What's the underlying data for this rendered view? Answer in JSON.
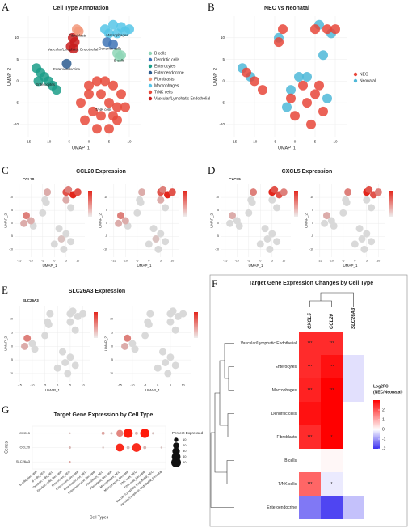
{
  "chart_data": [
    {
      "type": "scatter",
      "panel": "A",
      "title": "Cell Type Annotation",
      "xlabel": "UMAP_1",
      "ylabel": "UMAP_2",
      "xlim": [
        -17,
        13
      ],
      "ylim": [
        -13,
        15
      ],
      "xticks": [
        -15,
        -10,
        -5,
        0,
        5,
        10
      ],
      "yticks": [
        -10,
        -5,
        0,
        5,
        10
      ],
      "grid": true,
      "on_plot_labels": true,
      "series": [
        {
          "name": "B cells",
          "color": "#8ed6b6",
          "x": [
            7,
            7.5,
            8
          ],
          "y": [
            6.5,
            5.5,
            6
          ]
        },
        {
          "name": "Dendritic cells",
          "color": "#3e74b6",
          "x": [
            4.5,
            6
          ],
          "y": [
            9,
            8.5
          ]
        },
        {
          "name": "Enterocytes",
          "color": "#1b9e88",
          "x": [
            -13,
            -12,
            -11,
            -10,
            -9,
            -8,
            -12.5
          ],
          "y": [
            3,
            2,
            1,
            0,
            -1,
            -2,
            0
          ]
        },
        {
          "name": "Enteroendocrine",
          "color": "#2d5c8f",
          "x": [
            -5.5
          ],
          "y": [
            4
          ]
        },
        {
          "name": "Fibroblasts",
          "color": "#f2987a",
          "x": [
            -3,
            -2.5
          ],
          "y": [
            12,
            11.5
          ]
        },
        {
          "name": "Macrophages",
          "color": "#56c5e8",
          "x": [
            4,
            6,
            8,
            10,
            7,
            9,
            5
          ],
          "y": [
            12,
            13,
            12.5,
            12,
            11,
            11.5,
            11
          ]
        },
        {
          "name": "T/NK cells",
          "color": "#e84a3b",
          "x": [
            0,
            2,
            4,
            6,
            8,
            9,
            7,
            5,
            2,
            -1,
            -2,
            0,
            3,
            5,
            7,
            3,
            1,
            6
          ],
          "y": [
            -1,
            0,
            0,
            -1,
            -3,
            -6,
            -9,
            -11,
            -11,
            -9,
            -5,
            -3,
            -3,
            -5,
            -6,
            -8,
            -7,
            -8
          ]
        },
        {
          "name": "Vascular/Lymphatic Endothelial",
          "color": "#c81e1e",
          "x": [
            -4,
            -3.5,
            -4.5,
            -3.8
          ],
          "y": [
            10,
            9,
            8,
            7.5
          ]
        }
      ]
    },
    {
      "type": "scatter",
      "panel": "B",
      "title": "NEC vs Neonatal",
      "xlabel": "UMAP_1",
      "ylabel": "UMAP_2",
      "xlim": [
        -17,
        13
      ],
      "ylim": [
        -13,
        15
      ],
      "xticks": [
        -15,
        -10,
        -5,
        0,
        5,
        10
      ],
      "yticks": [
        -10,
        -5,
        0,
        5,
        10
      ],
      "grid": true,
      "on_plot_labels": false,
      "series": [
        {
          "name": "NEC",
          "color": "#e8463a",
          "x": [
            5,
            8,
            10,
            -3,
            -4,
            -12,
            -10,
            -8,
            2,
            5,
            7,
            4,
            0,
            3,
            -1,
            6
          ],
          "y": [
            12,
            12,
            12,
            12,
            9,
            2,
            0,
            -2,
            -1,
            -3,
            -7,
            -10,
            -8,
            -5,
            -4,
            -1
          ]
        },
        {
          "name": "Neonatal",
          "color": "#4fb8d8",
          "x": [
            6,
            9,
            7,
            -4,
            -13,
            -11,
            -1,
            1,
            3,
            8,
            -2
          ],
          "y": [
            13,
            11,
            6,
            10,
            3,
            1,
            -2,
            1,
            1,
            -4,
            -6
          ]
        }
      ]
    },
    {
      "type": "feature",
      "panel": "C",
      "title": "CCL20 Expression",
      "gene": "CCL20",
      "xlabel": "UMAP_1",
      "ylabel": "UMAP_2",
      "xlim": [
        -17,
        13
      ],
      "ylim": [
        -13,
        15
      ],
      "xticks": [
        -15,
        -10,
        -5,
        0,
        5,
        10
      ],
      "yticks": [
        -10,
        -5,
        0,
        5,
        10
      ],
      "clim": [
        0,
        4
      ],
      "low_color": "#d9d9d9",
      "high_color": "#e3261c",
      "x": [
        5,
        8,
        10,
        6,
        5,
        7,
        -3,
        -4,
        -3.5,
        -12,
        -10,
        -9,
        -13,
        -5,
        2,
        5,
        7,
        4,
        0,
        3
      ],
      "y": [
        12,
        11,
        12,
        13,
        9,
        6,
        12,
        9,
        8,
        3,
        1,
        -1,
        0,
        4,
        -2,
        -4,
        -7,
        -10,
        -8,
        -6
      ],
      "values": [
        3,
        4,
        3,
        2,
        1,
        0,
        1,
        0,
        0,
        2,
        1,
        0,
        1,
        0,
        0,
        0,
        0,
        0,
        0,
        0.5
      ]
    },
    {
      "type": "feature",
      "panel": "D",
      "title": "CXCL5 Expression",
      "gene": "CXCL5",
      "xlabel": "UMAP_1",
      "ylabel": "UMAP_2",
      "xlim": [
        -17,
        13
      ],
      "ylim": [
        -13,
        15
      ],
      "xticks": [
        -15,
        -10,
        -5,
        0,
        5,
        10
      ],
      "yticks": [
        -10,
        -5,
        0,
        5,
        10
      ],
      "clim": [
        0,
        4
      ],
      "low_color": "#d9d9d9",
      "high_color": "#e3261c",
      "x": [
        5,
        8,
        10,
        6,
        5,
        7,
        -3,
        -4,
        -3.5,
        -12,
        -10,
        -9,
        -13,
        -5,
        2,
        5,
        7,
        4,
        0,
        3
      ],
      "y": [
        12,
        11,
        12,
        13,
        9,
        6,
        12,
        9,
        8,
        3,
        1,
        -1,
        0,
        4,
        -2,
        -4,
        -7,
        -10,
        -8,
        -6
      ],
      "values": [
        4,
        3,
        2,
        3,
        0,
        0,
        2,
        0,
        0,
        1,
        0,
        0,
        0,
        0,
        0,
        0,
        0,
        0,
        0,
        0
      ]
    },
    {
      "type": "feature",
      "panel": "E",
      "title": "SLC26A3 Expression",
      "gene": "SLC26A3",
      "xlabel": "UMAP_1",
      "ylabel": "UMAP_2",
      "xlim": [
        -17,
        13
      ],
      "ylim": [
        -13,
        15
      ],
      "xticks": [
        -15,
        -10,
        -5,
        0,
        5,
        10
      ],
      "yticks": [
        -10,
        -5,
        0,
        5,
        10
      ],
      "clim": [
        0,
        4
      ],
      "low_color": "#d9d9d9",
      "high_color": "#e3261c",
      "x": [
        5,
        8,
        10,
        6,
        5,
        7,
        -3,
        -4,
        -3.5,
        -12,
        -10,
        -9,
        -13,
        -5,
        2,
        5,
        7,
        4,
        0,
        3
      ],
      "y": [
        12,
        11,
        12,
        13,
        9,
        6,
        12,
        9,
        8,
        3,
        1,
        -1,
        0,
        4,
        -2,
        -4,
        -7,
        -10,
        -8,
        -6
      ],
      "values": [
        0,
        0,
        0,
        0,
        0,
        0,
        0,
        0,
        0,
        2,
        0,
        0,
        1,
        0,
        0,
        0,
        0,
        0,
        0,
        0
      ]
    },
    {
      "type": "heatmap",
      "panel": "F",
      "title": "Target Gene Expression Changes by Cell Type",
      "columns": [
        "CXCL5",
        "CCL20",
        "SLC26A3"
      ],
      "rows": [
        "Vascular/Lymphatic Endothelial",
        "Enterocytes",
        "Macrophages",
        "Dendritic cells",
        "Fibroblasts",
        "B cells",
        "T/NK cells",
        "Enteroendocrine"
      ],
      "values": [
        [
          2.5,
          2.5,
          null
        ],
        [
          2.5,
          2.8,
          -0.3
        ],
        [
          2.6,
          3,
          -0.3
        ],
        [
          2.8,
          3,
          null
        ],
        [
          2.5,
          3,
          null
        ],
        [
          0,
          0.1,
          null
        ],
        [
          1.8,
          -0.2,
          null
        ],
        [
          -1.3,
          -1.8,
          -0.6
        ]
      ],
      "significance": [
        [
          "***",
          "***",
          null
        ],
        [
          "***",
          "***",
          null
        ],
        [
          "***",
          "***",
          null
        ],
        [
          null,
          null,
          null
        ],
        [
          "***",
          "*",
          null
        ],
        [
          null,
          null,
          null
        ],
        [
          "***",
          "*",
          null
        ],
        [
          null,
          null,
          null
        ]
      ],
      "colorbar_title": [
        "Log2FC",
        "(NEC/Neonatal)"
      ],
      "clim": [
        -2,
        3
      ],
      "cticks": [
        2,
        1,
        0,
        -1,
        -2
      ],
      "low_color": "#3b30f0",
      "mid_color": "#ffffff",
      "high_color": "#ff0000"
    },
    {
      "type": "dot",
      "panel": "G",
      "title": "Target Gene Expression by Cell Type",
      "xlabel": "Cell Types",
      "ylabel": "Genes",
      "genes": [
        "CXCL5",
        "CCL20",
        "SLC26A3"
      ],
      "categories": [
        "B cells_Neonatal",
        "B cells_NEC",
        "Dendritic cells_NEC",
        "Dendritic cells_Neonatal",
        "Enterocytes_NEC",
        "Enterocytes_Neonatal",
        "Enteroendocrine_NEC",
        "Enteroendocrine_Neonatal",
        "Fibroblasts_NEC",
        "Fibroblasts_Neonatal",
        "Macrophages_NEC",
        "Macrophages_Neonatal",
        "T/NK cells_NEC",
        "T/NK cells_Neonatal",
        "Vascular/Lymphatic Endothelial_NEC",
        "Vascular/Lymphatic Endothelial_Neonatal"
      ],
      "pct": [
        [
          0,
          0,
          0,
          0,
          2,
          0,
          0,
          0,
          5,
          3,
          25,
          45,
          5,
          45,
          3,
          0
        ],
        [
          0,
          0,
          0,
          0,
          3,
          0,
          0,
          0,
          2,
          0,
          35,
          5,
          40,
          5,
          0,
          2
        ],
        [
          0,
          0,
          0,
          0,
          2,
          0,
          0,
          0,
          0,
          0,
          0,
          0,
          0,
          0,
          0,
          0
        ]
      ],
      "expr": [
        [
          0,
          0,
          0,
          0,
          0.2,
          0,
          0,
          0,
          0.5,
          0.2,
          0.8,
          2,
          0.3,
          2,
          0.2,
          0
        ],
        [
          0,
          0,
          0,
          0,
          0.3,
          0,
          0,
          0,
          0.2,
          0,
          1.8,
          0.2,
          1.8,
          0.3,
          0,
          0.2
        ],
        [
          0,
          0,
          0,
          0,
          0.5,
          0,
          0,
          0,
          0,
          0,
          0,
          0,
          0,
          0,
          0,
          0
        ]
      ],
      "expr_lim": [
        0,
        2
      ],
      "low_color": "#d0d0d0",
      "high_color": "#ff1a0a",
      "size_legend_title": "Percent Expressed",
      "size_legend": [
        10,
        20,
        30,
        40,
        50
      ]
    }
  ]
}
